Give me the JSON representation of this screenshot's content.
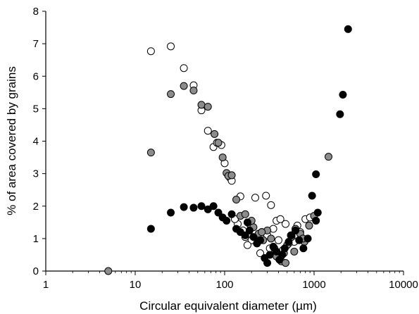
{
  "chart_data": {
    "type": "scatter",
    "title": "",
    "xlabel": "Circular equivalent diameter (µm)",
    "ylabel": "% of area covered by grains",
    "xscale": "log",
    "xlim": [
      1,
      10000
    ],
    "ylim": [
      0,
      8
    ],
    "xticks": [
      1,
      10,
      100,
      1000,
      10000
    ],
    "xtick_labels": [
      "1",
      "10",
      "100",
      "1000",
      "10000"
    ],
    "yticks": [
      0,
      1,
      2,
      3,
      4,
      5,
      6,
      7,
      8
    ],
    "ytick_labels": [
      "0",
      "1",
      "2",
      "3",
      "4",
      "5",
      "6",
      "7",
      "8"
    ],
    "grid": false,
    "legend": "none",
    "series": [
      {
        "marker": "open-circle",
        "color": "#ffffff",
        "stroke": "#000000",
        "points": [
          [
            15,
            6.77
          ],
          [
            25,
            6.92
          ],
          [
            35,
            6.25
          ],
          [
            45,
            5.72
          ],
          [
            55,
            4.95
          ],
          [
            65,
            4.32
          ],
          [
            75,
            3.82
          ],
          [
            82,
            3.95
          ],
          [
            92,
            3.88
          ],
          [
            100,
            3.32
          ],
          [
            115,
            2.87
          ],
          [
            120,
            2.78
          ],
          [
            150,
            2.3
          ],
          [
            220,
            2.26
          ],
          [
            290,
            2.32
          ],
          [
            330,
            2.03
          ],
          [
            170,
            1.05
          ],
          [
            200,
            0.95
          ],
          [
            230,
            0.85
          ],
          [
            260,
            1.2
          ],
          [
            300,
            1.1
          ],
          [
            350,
            1.3
          ],
          [
            380,
            1.55
          ],
          [
            420,
            1.6
          ],
          [
            480,
            1.45
          ],
          [
            550,
            1.1
          ],
          [
            600,
            0.9
          ],
          [
            650,
            1.4
          ],
          [
            700,
            1.2
          ],
          [
            800,
            1.6
          ],
          [
            900,
            1.65
          ],
          [
            180,
            0.8
          ],
          [
            250,
            0.55
          ],
          [
            320,
            0.7
          ],
          [
            400,
            0.95
          ],
          [
            450,
            0.65
          ],
          [
            520,
            0.85
          ],
          [
            160,
            1.25
          ],
          [
            140,
            1.45
          ],
          [
            130,
            1.6
          ]
        ]
      },
      {
        "marker": "grey-circle",
        "color": "#8c8c8c",
        "stroke": "#000000",
        "points": [
          [
            5,
            0.0
          ],
          [
            15,
            3.65
          ],
          [
            25,
            5.45
          ],
          [
            35,
            5.7
          ],
          [
            45,
            5.56
          ],
          [
            55,
            5.12
          ],
          [
            65,
            5.06
          ],
          [
            77,
            4.22
          ],
          [
            85,
            3.95
          ],
          [
            95,
            3.5
          ],
          [
            105,
            3.02
          ],
          [
            110,
            2.93
          ],
          [
            120,
            2.95
          ],
          [
            135,
            2.2
          ],
          [
            150,
            1.7
          ],
          [
            170,
            1.75
          ],
          [
            190,
            1.45
          ],
          [
            210,
            1.35
          ],
          [
            240,
            1.15
          ],
          [
            270,
            0.95
          ],
          [
            300,
            1.25
          ],
          [
            330,
            1.0
          ],
          [
            360,
            0.7
          ],
          [
            400,
            0.4
          ],
          [
            430,
            0.3
          ],
          [
            460,
            0.55
          ],
          [
            500,
            0.8
          ],
          [
            560,
            1.05
          ],
          [
            620,
            1.3
          ],
          [
            700,
            1.15
          ],
          [
            780,
            0.9
          ],
          [
            880,
            1.4
          ],
          [
            1000,
            1.7
          ],
          [
            1450,
            3.52
          ],
          [
            200,
            1.55
          ],
          [
            260,
            1.2
          ],
          [
            380,
            0.45
          ],
          [
            480,
            0.25
          ],
          [
            600,
            0.6
          ],
          [
            750,
            1.0
          ]
        ]
      },
      {
        "marker": "black-circle",
        "color": "#000000",
        "stroke": "#000000",
        "points": [
          [
            15,
            1.3
          ],
          [
            25,
            1.8
          ],
          [
            35,
            1.97
          ],
          [
            45,
            1.95
          ],
          [
            55,
            2.0
          ],
          [
            65,
            1.9
          ],
          [
            75,
            2.0
          ],
          [
            85,
            1.8
          ],
          [
            95,
            1.65
          ],
          [
            105,
            1.55
          ],
          [
            120,
            1.75
          ],
          [
            135,
            1.3
          ],
          [
            150,
            1.2
          ],
          [
            170,
            1.1
          ],
          [
            190,
            1.25
          ],
          [
            210,
            1.05
          ],
          [
            230,
            0.85
          ],
          [
            250,
            0.95
          ],
          [
            280,
            0.4
          ],
          [
            300,
            0.25
          ],
          [
            320,
            0.5
          ],
          [
            350,
            0.75
          ],
          [
            380,
            0.6
          ],
          [
            410,
            0.35
          ],
          [
            440,
            0.5
          ],
          [
            470,
            0.7
          ],
          [
            520,
            0.9
          ],
          [
            560,
            1.1
          ],
          [
            620,
            1.25
          ],
          [
            680,
            0.95
          ],
          [
            760,
            0.7
          ],
          [
            850,
            1.0
          ],
          [
            950,
            2.32
          ],
          [
            1050,
            2.98
          ],
          [
            1100,
            1.8
          ],
          [
            1050,
            1.55
          ],
          [
            1950,
            4.83
          ],
          [
            2100,
            5.43
          ],
          [
            2400,
            7.45
          ],
          [
            180,
            1.5
          ]
        ]
      }
    ]
  }
}
